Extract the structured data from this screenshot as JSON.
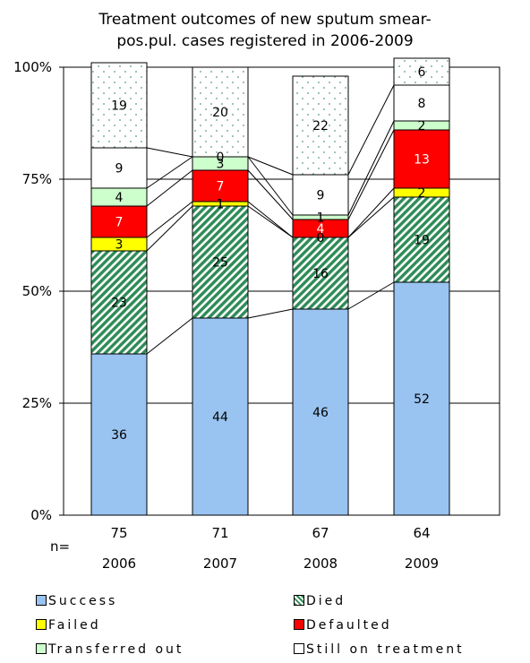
{
  "chart_data": {
    "type": "bar",
    "stacked": true,
    "percent_stacked": true,
    "title": "Treatment outcomes of new sputum smear-pos.pul. cases registered in 2006-2009",
    "title_lines": [
      "Treatment outcomes of new sputum smear-",
      "pos.pul. cases registered in 2006-2009"
    ],
    "categories": [
      "2006",
      "2007",
      "2008",
      "2009"
    ],
    "n_prefix": "n=",
    "n_values": [
      "75",
      "71",
      "67",
      "64"
    ],
    "y_ticks": [
      "0%",
      "25%",
      "50%",
      "75%",
      "100%"
    ],
    "ylim": [
      0,
      100
    ],
    "grid": true,
    "legend_position": "bottom",
    "series": [
      {
        "name": "Success",
        "values": [
          36,
          44,
          46,
          52
        ],
        "color": "#99c3f0",
        "pattern": "solid"
      },
      {
        "name": "Died",
        "values": [
          23,
          25,
          16,
          19
        ],
        "color": "#2e8b57",
        "pattern": "diagonal-hatch"
      },
      {
        "name": "Failed",
        "values": [
          3,
          1,
          0,
          2
        ],
        "color": "#ffff00",
        "pattern": "solid"
      },
      {
        "name": "Defaulted",
        "values": [
          7,
          7,
          4,
          13
        ],
        "color": "#ff0000",
        "pattern": "solid"
      },
      {
        "name": "Transferred out",
        "values": [
          4,
          3,
          1,
          2
        ],
        "color": "#ccffcc",
        "pattern": "solid"
      },
      {
        "name": "Still on treatment",
        "values": [
          9,
          0,
          9,
          8
        ],
        "color": "#ffffff",
        "pattern": "solid"
      },
      {
        "name": "",
        "values": [
          19,
          20,
          22,
          6
        ],
        "color": "#5a9a8a",
        "pattern": "dots"
      }
    ],
    "data_labels": [
      [
        "36",
        "23",
        "3",
        "7",
        "4",
        "9",
        "19"
      ],
      [
        "44",
        "25",
        "1",
        "7",
        "3",
        "0",
        "20"
      ],
      [
        "46",
        "16",
        "0",
        "4",
        "1",
        "9",
        "22"
      ],
      [
        "52",
        "19",
        "2",
        "13",
        "2",
        "8",
        "6"
      ]
    ]
  },
  "legend": [
    {
      "label": "Success",
      "color": "#99c3f0",
      "pattern": "solid"
    },
    {
      "label": "Died",
      "color": "#2e8b57",
      "pattern": "diagonal-hatch"
    },
    {
      "label": "Failed",
      "color": "#ffff00",
      "pattern": "solid"
    },
    {
      "label": "Defaulted",
      "color": "#ff0000",
      "pattern": "solid"
    },
    {
      "label": "Transferred out",
      "color": "#ccffcc",
      "pattern": "solid"
    },
    {
      "label": "Still on treatment",
      "color": "#ffffff",
      "pattern": "solid"
    }
  ]
}
